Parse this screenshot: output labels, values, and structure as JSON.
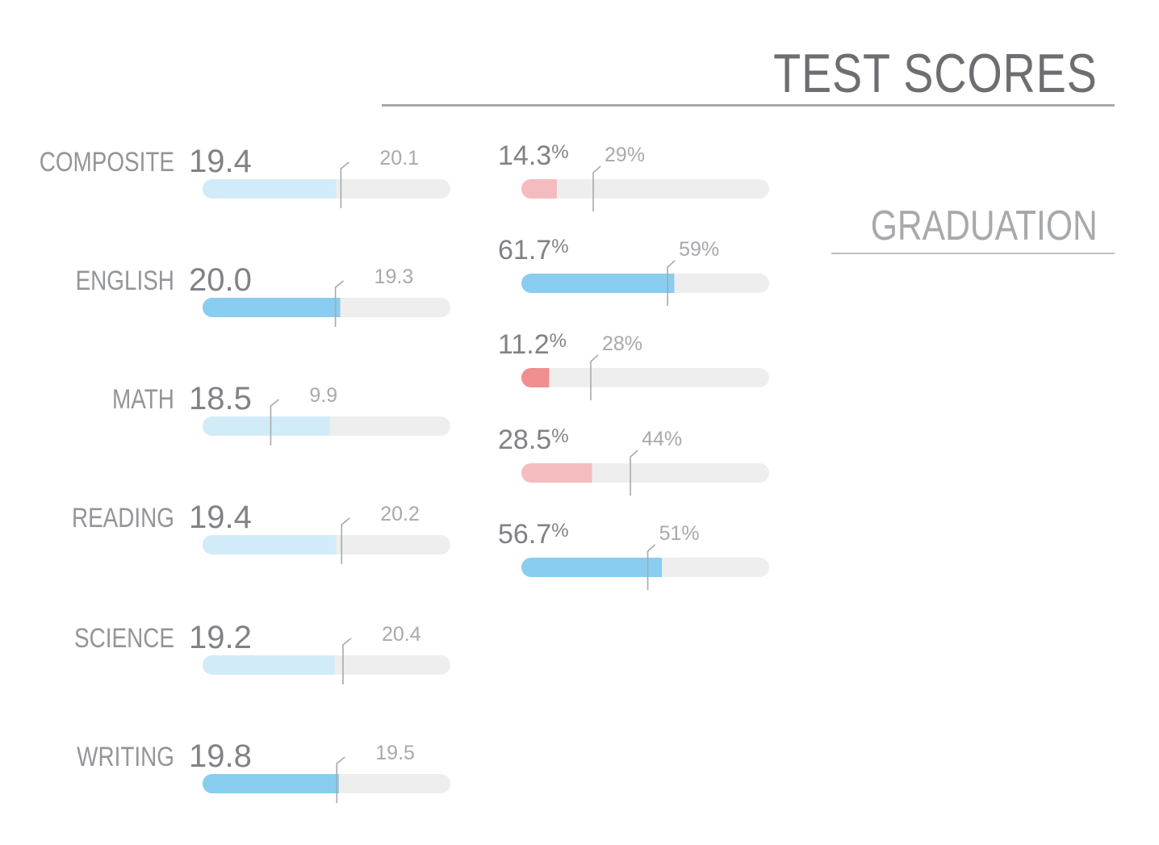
{
  "header": {
    "title": "TEST SCORES",
    "subtitle": "GRADUATION"
  },
  "colors": {
    "track": "#eeeeee",
    "blue_strong": "#89cdf1",
    "blue_light": "#d2ebf9",
    "red_strong": "#f08e90",
    "red_light": "#f4bcbf",
    "label": "#939598",
    "value": "#808285",
    "benchmark": "#a7a9ac"
  },
  "chart_data": [
    {
      "type": "bar",
      "orientation": "horizontal",
      "title": "TEST SCORES",
      "xlim": [
        0,
        36
      ],
      "categories": [
        "COMPOSITE",
        "ENGLISH",
        "MATH",
        "READING",
        "SCIENCE",
        "WRITING"
      ],
      "series": [
        {
          "values": [
            19.4,
            20.0,
            18.5,
            19.4,
            19.2,
            19.8
          ],
          "value_labels": [
            "19.4",
            "20.0",
            "18.5",
            "19.4",
            "19.2",
            "19.8"
          ]
        }
      ],
      "benchmarks": [
        20.1,
        19.3,
        9.9,
        20.2,
        20.4,
        19.5
      ],
      "benchmark_labels": [
        "20.1",
        "19.3",
        "9.9",
        "20.2",
        "20.4",
        "19.5"
      ],
      "fill_style": [
        "light",
        "strong",
        "light",
        "light",
        "light",
        "strong"
      ]
    },
    {
      "type": "bar",
      "orientation": "horizontal",
      "xlim": [
        0,
        100
      ],
      "series": [
        {
          "values": [
            14.3,
            61.7,
            11.2,
            28.5,
            56.7
          ],
          "value_labels": [
            "14.3",
            "61.7",
            "11.2",
            "28.5",
            "56.7"
          ],
          "unit": "%"
        }
      ],
      "benchmarks": [
        29,
        59,
        28,
        44,
        51
      ],
      "benchmark_labels": [
        "29%",
        "59%",
        "28%",
        "44%",
        "51%"
      ],
      "fill_style": [
        "red_light",
        "blue_strong",
        "red_strong",
        "red_light",
        "blue_strong"
      ]
    }
  ]
}
